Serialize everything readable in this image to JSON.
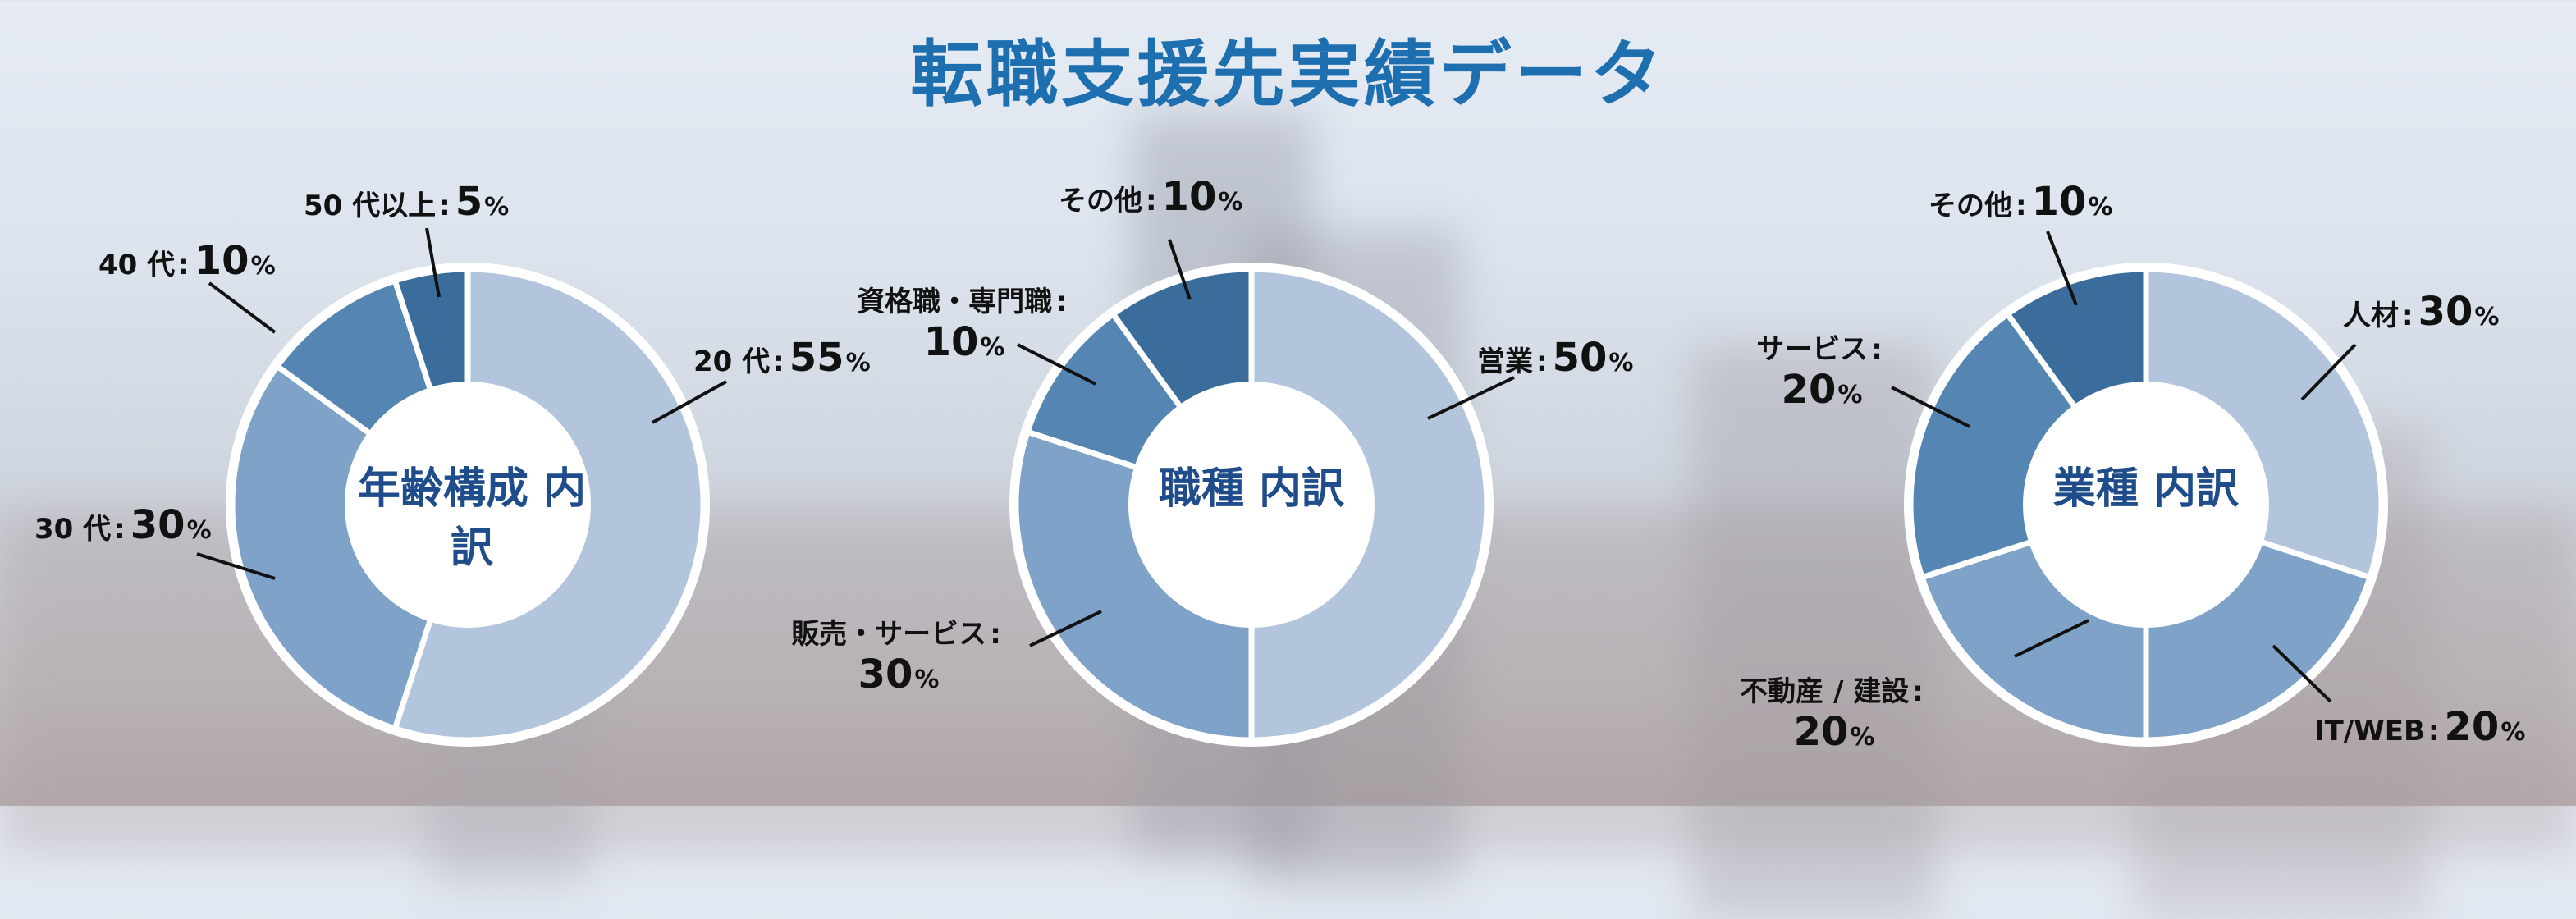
{
  "title": "転職支援先実績データ",
  "colors": {
    "title": "#1d6fb0",
    "center_text": "#1f4d8c",
    "slice_1": "#b3c5dd",
    "slice_2": "#7ea2c8",
    "slice_3": "#5585b3",
    "slice_4": "#3a6d9c",
    "leader": "#111111"
  },
  "chart_data": [
    {
      "type": "pie",
      "center_label": [
        "年齢構成",
        "内訳"
      ],
      "slices": [
        {
          "label": "20 代",
          "value": 55,
          "unit": "%"
        },
        {
          "label": "30 代",
          "value": 30,
          "unit": "%"
        },
        {
          "label": "40 代",
          "value": 10,
          "unit": "%"
        },
        {
          "label": "50 代以上",
          "value": 5,
          "unit": "%"
        }
      ]
    },
    {
      "type": "pie",
      "center_label": [
        "職種",
        "内訳"
      ],
      "slices": [
        {
          "label": "営業",
          "value": 50,
          "unit": "%"
        },
        {
          "label": "販売・サービス",
          "value": 30,
          "unit": "%"
        },
        {
          "label": "資格職・専門職",
          "value": 10,
          "unit": "%"
        },
        {
          "label": "その他",
          "value": 10,
          "unit": "%"
        }
      ]
    },
    {
      "type": "pie",
      "center_label": [
        "業種",
        "内訳"
      ],
      "slices": [
        {
          "label": "人材",
          "value": 30,
          "unit": "%"
        },
        {
          "label": "IT/WEB",
          "value": 20,
          "unit": "%"
        },
        {
          "label": "不動産 / 建設",
          "value": 20,
          "unit": "%"
        },
        {
          "label": "サービス",
          "value": 20,
          "unit": "%"
        },
        {
          "label": "その他",
          "value": 10,
          "unit": "%"
        }
      ]
    }
  ]
}
